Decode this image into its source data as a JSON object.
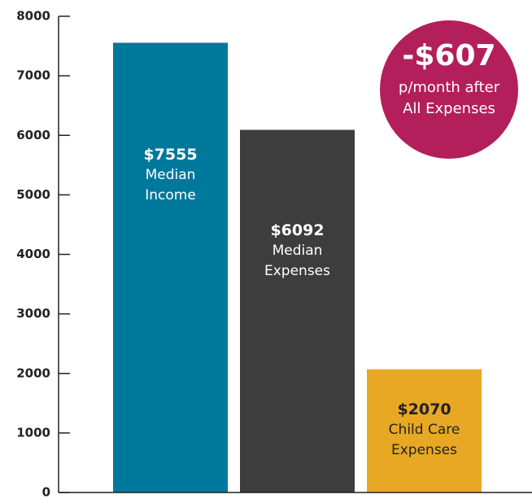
{
  "chart_data": {
    "type": "bar",
    "categories": [
      "Median Income",
      "Median Expenses",
      "Child Care Expenses"
    ],
    "values": [
      7555,
      6092,
      2070
    ],
    "value_labels": [
      "$7555",
      "$6092",
      "$2070"
    ],
    "colors": [
      "#00789c",
      "#3d3d3d",
      "#e8a823"
    ],
    "ylim": [
      0,
      8000
    ],
    "yticks": [
      0,
      1000,
      2000,
      3000,
      4000,
      5000,
      6000,
      7000,
      8000
    ],
    "annotation": {
      "headline": "-$607",
      "text": "p/month after All Expenses",
      "color": "#b31f5a"
    }
  }
}
